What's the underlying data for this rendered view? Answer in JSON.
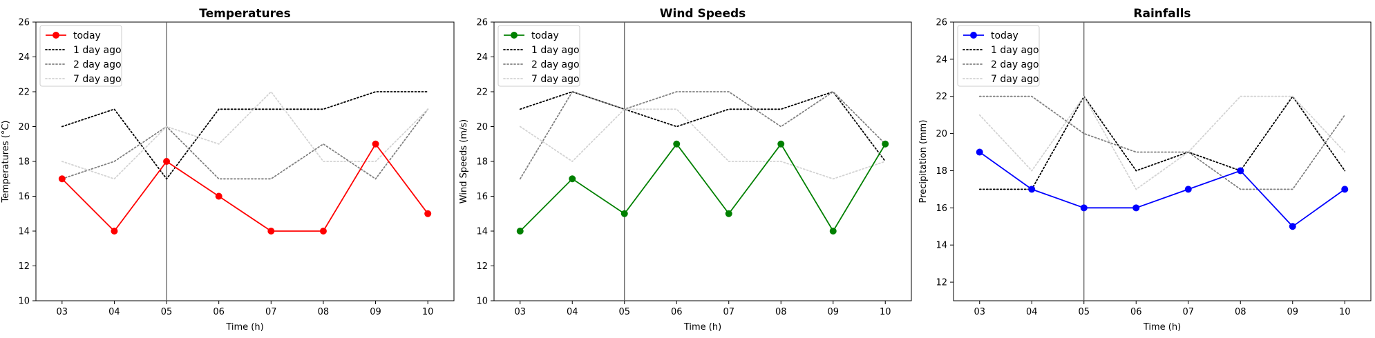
{
  "chart_data": [
    {
      "type": "line",
      "title": "Temperatures",
      "xlabel": "Time (h)",
      "ylabel": "Temperatures (°C)",
      "categories": [
        "03",
        "04",
        "05",
        "06",
        "07",
        "08",
        "09",
        "10"
      ],
      "ylim": [
        10,
        26
      ],
      "yticks": [
        10,
        12,
        14,
        16,
        18,
        20,
        22,
        24,
        26
      ],
      "vline_at": "05",
      "grid": false,
      "legend": "top-left",
      "series": [
        {
          "name": "today",
          "color": "#ff0000",
          "style": "solid-marker",
          "values": [
            17,
            14,
            18,
            16,
            14,
            14,
            19,
            15
          ]
        },
        {
          "name": "1 day ago",
          "color": "#000000",
          "style": "dotted",
          "values": [
            20,
            21,
            17,
            21,
            21,
            21,
            22,
            22
          ]
        },
        {
          "name": "2 day ago",
          "color": "#808080",
          "style": "dotted",
          "values": [
            17,
            18,
            20,
            17,
            17,
            19,
            17,
            21
          ]
        },
        {
          "name": "7 day ago",
          "color": "#d3d3d3",
          "style": "dotted",
          "values": [
            18,
            17,
            20,
            19,
            22,
            18,
            18,
            21
          ]
        }
      ]
    },
    {
      "type": "line",
      "title": "Wind Speeds",
      "xlabel": "Time (h)",
      "ylabel": "Wind Speeds (m/s)",
      "categories": [
        "03",
        "04",
        "05",
        "06",
        "07",
        "08",
        "09",
        "10"
      ],
      "ylim": [
        10,
        26
      ],
      "yticks": [
        10,
        12,
        14,
        16,
        18,
        20,
        22,
        24,
        26
      ],
      "vline_at": "05",
      "grid": false,
      "legend": "top-left",
      "series": [
        {
          "name": "today",
          "color": "#008000",
          "style": "solid-marker",
          "values": [
            14,
            17,
            15,
            19,
            15,
            19,
            14,
            19
          ]
        },
        {
          "name": "1 day ago",
          "color": "#000000",
          "style": "dotted",
          "values": [
            21,
            22,
            21,
            20,
            21,
            21,
            22,
            18
          ]
        },
        {
          "name": "2 day ago",
          "color": "#808080",
          "style": "dotted",
          "values": [
            17,
            22,
            21,
            22,
            22,
            20,
            22,
            19
          ]
        },
        {
          "name": "7 day ago",
          "color": "#d3d3d3",
          "style": "dotted",
          "values": [
            20,
            18,
            21,
            21,
            18,
            18,
            17,
            18
          ]
        }
      ]
    },
    {
      "type": "line",
      "title": "Rainfalls",
      "xlabel": "Time (h)",
      "ylabel": "Precipitation (mm)",
      "categories": [
        "03",
        "04",
        "05",
        "06",
        "07",
        "08",
        "09",
        "10"
      ],
      "ylim": [
        11,
        26
      ],
      "yticks": [
        12,
        14,
        16,
        18,
        20,
        22,
        24,
        26
      ],
      "vline_at": "05",
      "grid": false,
      "legend": "top-left",
      "series": [
        {
          "name": "today",
          "color": "#0000ff",
          "style": "solid-marker",
          "values": [
            19,
            17,
            16,
            16,
            17,
            18,
            15,
            17
          ]
        },
        {
          "name": "1 day ago",
          "color": "#000000",
          "style": "dotted",
          "values": [
            17,
            17,
            22,
            18,
            19,
            18,
            22,
            18
          ]
        },
        {
          "name": "2 day ago",
          "color": "#808080",
          "style": "dotted",
          "values": [
            22,
            22,
            20,
            19,
            19,
            17,
            17,
            21
          ]
        },
        {
          "name": "7 day ago",
          "color": "#d3d3d3",
          "style": "dotted",
          "values": [
            21,
            18,
            22,
            17,
            19,
            22,
            22,
            19
          ]
        }
      ]
    }
  ]
}
